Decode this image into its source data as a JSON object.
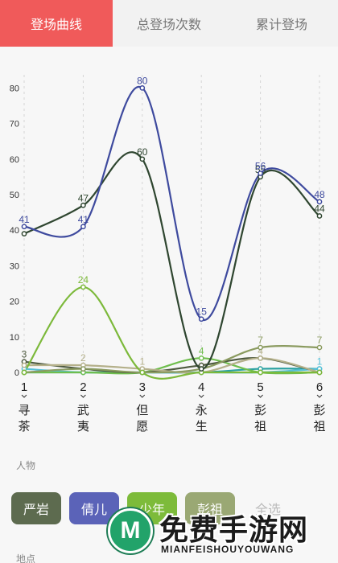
{
  "tabs": [
    {
      "label": "登场曲线",
      "active": true
    },
    {
      "label": "总登场次数",
      "active": false
    },
    {
      "label": "累计登场",
      "active": false
    }
  ],
  "chart_data": {
    "type": "line",
    "x": [
      1,
      2,
      3,
      4,
      5,
      6
    ],
    "x_tick_labels": [
      "1",
      "2",
      "3",
      "4",
      "5",
      "6"
    ],
    "x_category_labels": [
      "寻茶",
      "武夷",
      "但愿",
      "永生",
      "彭祖",
      "彭祖"
    ],
    "ylim": [
      0,
      80
    ],
    "y_ticks": [
      0,
      10,
      20,
      30,
      40,
      50,
      60,
      70,
      80
    ],
    "grid": "vertical dashed",
    "series": [
      {
        "color": "#3e4a9e",
        "values": [
          41,
          41,
          80,
          15,
          56,
          48
        ],
        "labels": [
          "41",
          "41",
          "80",
          "15",
          "56",
          "48"
        ]
      },
      {
        "color": "#2f4630",
        "values": [
          39,
          47,
          60,
          1,
          55,
          44
        ],
        "labels": [
          "",
          "47",
          "60",
          "",
          "55",
          "44"
        ]
      },
      {
        "color": "#7cb93a",
        "values": [
          0,
          24,
          0,
          0,
          0,
          0
        ],
        "labels": [
          "",
          "24",
          "",
          "",
          "",
          ""
        ]
      },
      {
        "color": "#8b9b60",
        "values": [
          0,
          1,
          0,
          1,
          7,
          7
        ],
        "labels": [
          "",
          "",
          "",
          "",
          "7",
          "7"
        ]
      },
      {
        "color": "#b4b08a",
        "values": [
          2,
          2,
          1,
          0,
          4,
          0
        ],
        "labels": [
          "",
          "2",
          "1",
          "",
          "4",
          ""
        ]
      },
      {
        "color": "#4e5a3f",
        "values": [
          3,
          1,
          0,
          2,
          4,
          0
        ],
        "labels": [
          "3",
          "",
          "",
          "",
          "",
          ""
        ]
      },
      {
        "color": "#6fbe4d",
        "values": [
          0,
          0,
          0,
          4,
          0,
          0
        ],
        "labels": [
          "",
          "",
          "",
          "4",
          "",
          ""
        ]
      },
      {
        "color": "#55c0d8",
        "values": [
          1,
          0,
          0,
          0,
          0,
          1
        ],
        "labels": [
          "",
          "",
          "",
          "",
          "",
          "1"
        ]
      },
      {
        "color": "#2aa1a1",
        "values": [
          0,
          0,
          0,
          0,
          1,
          1
        ],
        "labels": [
          "",
          "",
          "",
          "",
          "",
          ""
        ]
      }
    ]
  },
  "people_section_label": "人物",
  "places_section_label": "地点",
  "chips": [
    {
      "label": "严岩",
      "color": "#5d6b4f"
    },
    {
      "label": "倩儿",
      "color": "#5b63b8"
    },
    {
      "label": "少年",
      "color": "#7dbb3a"
    },
    {
      "label": "彭祖",
      "color": "#9aa874"
    },
    {
      "label": "全选",
      "color": "transparent"
    }
  ],
  "watermark": {
    "logo_letter": "M",
    "title": "免费手游网",
    "subtitle": "MIANFEISHOUYOUWANG"
  }
}
